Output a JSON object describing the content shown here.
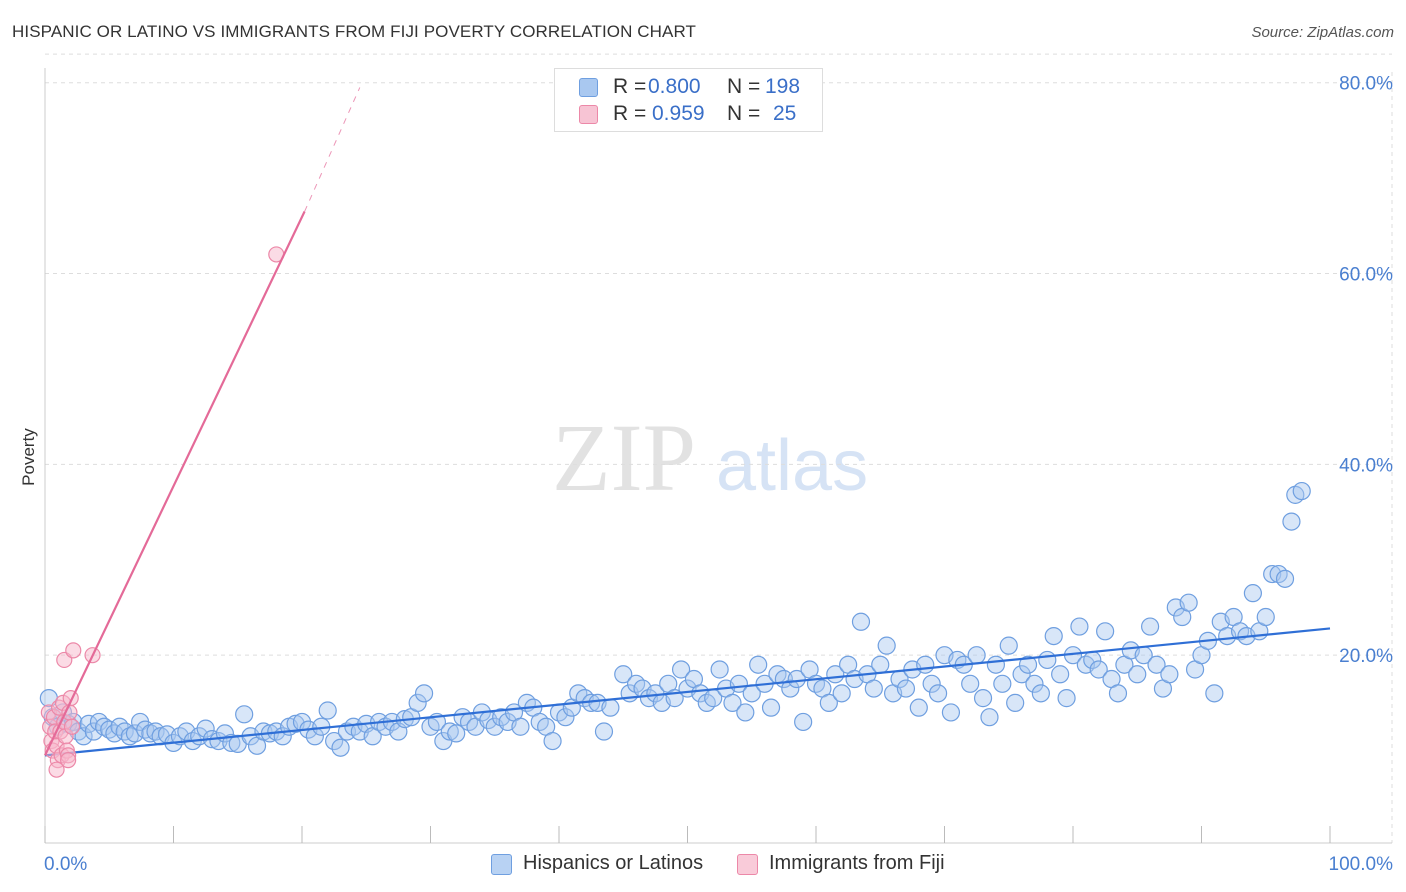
{
  "header": {
    "title": "HISPANIC OR LATINO VS IMMIGRANTS FROM FIJI POVERTY CORRELATION CHART",
    "source": "Source: ZipAtlas.com"
  },
  "watermark": {
    "zip": "ZIP",
    "atlas": "atlas"
  },
  "colors": {
    "blue_fill": "#a9c8f0",
    "blue_stroke": "#6f9fe0",
    "blue_line": "#2f6fd6",
    "pink_fill": "#f7b8cc",
    "pink_stroke": "#ec88a8",
    "pink_line": "#e46a98",
    "axis_label": "#4a7fd0",
    "grid": "#dddddd"
  },
  "stats_legend": {
    "rows": [
      {
        "r_label": "R =",
        "r_value": "0.800",
        "n_label": "N =",
        "n_value": "198"
      },
      {
        "r_label": "R =",
        "r_value": "0.959",
        "n_label": "N =",
        "n_value": "25"
      }
    ]
  },
  "bottom_legend": {
    "items": [
      {
        "label": "Hispanics or Latinos"
      },
      {
        "label": "Immigrants from Fiji"
      }
    ]
  },
  "chart_data": {
    "type": "scatter",
    "title": "HISPANIC OR LATINO VS IMMIGRANTS FROM FIJI POVERTY CORRELATION CHART",
    "xlabel": "",
    "ylabel": "Poverty",
    "xlim": [
      0,
      100
    ],
    "ylim": [
      0,
      83
    ],
    "x_tick_labels": [
      "0.0%",
      "100.0%"
    ],
    "y_ticks": [
      20,
      40,
      60,
      80
    ],
    "y_tick_labels": [
      "20.0%",
      "40.0%",
      "60.0%",
      "80.0%"
    ],
    "grid": true,
    "legend_position": "bottom-center",
    "series": [
      {
        "name": "Hispanics or Latinos",
        "r": 0.8,
        "n": 198,
        "trend": {
          "x0": 0,
          "y0": 9.5,
          "x1": 100,
          "y1": 22.8
        },
        "points": [
          [
            0.3,
            15.5
          ],
          [
            0.6,
            13.5
          ],
          [
            1.0,
            12.5
          ],
          [
            1.4,
            14.0
          ],
          [
            1.8,
            12.8
          ],
          [
            2.2,
            13.0
          ],
          [
            2.6,
            12.0
          ],
          [
            3.0,
            11.5
          ],
          [
            3.4,
            12.8
          ],
          [
            3.8,
            12.0
          ],
          [
            4.2,
            13.0
          ],
          [
            4.6,
            12.5
          ],
          [
            5.0,
            12.2
          ],
          [
            5.4,
            11.8
          ],
          [
            5.8,
            12.5
          ],
          [
            6.2,
            12.0
          ],
          [
            6.6,
            11.5
          ],
          [
            7.0,
            11.8
          ],
          [
            7.4,
            13.0
          ],
          [
            7.8,
            12.2
          ],
          [
            8.2,
            11.8
          ],
          [
            8.6,
            12.0
          ],
          [
            9.0,
            11.5
          ],
          [
            9.5,
            11.7
          ],
          [
            10.0,
            10.8
          ],
          [
            10.5,
            11.5
          ],
          [
            11.0,
            12.0
          ],
          [
            11.5,
            11.0
          ],
          [
            12.0,
            11.5
          ],
          [
            12.5,
            12.3
          ],
          [
            13.0,
            11.2
          ],
          [
            13.5,
            11.0
          ],
          [
            14.0,
            11.8
          ],
          [
            14.5,
            10.8
          ],
          [
            15.0,
            10.7
          ],
          [
            15.5,
            13.8
          ],
          [
            16.0,
            11.5
          ],
          [
            16.5,
            10.5
          ],
          [
            17.0,
            12.0
          ],
          [
            17.5,
            11.8
          ],
          [
            18.0,
            12.0
          ],
          [
            18.5,
            11.5
          ],
          [
            19.0,
            12.5
          ],
          [
            19.5,
            12.8
          ],
          [
            20.0,
            13.0
          ],
          [
            20.5,
            12.2
          ],
          [
            21.0,
            11.5
          ],
          [
            21.5,
            12.5
          ],
          [
            22.0,
            14.2
          ],
          [
            22.5,
            11.0
          ],
          [
            23.0,
            10.3
          ],
          [
            23.5,
            12.0
          ],
          [
            24.0,
            12.5
          ],
          [
            24.5,
            12.0
          ],
          [
            25.0,
            12.8
          ],
          [
            25.5,
            11.5
          ],
          [
            26.0,
            13.0
          ],
          [
            26.5,
            12.5
          ],
          [
            27.0,
            13.0
          ],
          [
            27.5,
            12.0
          ],
          [
            28.0,
            13.3
          ],
          [
            28.5,
            13.5
          ],
          [
            29.0,
            15.0
          ],
          [
            29.5,
            16.0
          ],
          [
            30.0,
            12.5
          ],
          [
            30.5,
            13.0
          ],
          [
            31.0,
            11.0
          ],
          [
            31.5,
            12.0
          ],
          [
            32.0,
            11.8
          ],
          [
            32.5,
            13.5
          ],
          [
            33.0,
            13.0
          ],
          [
            33.5,
            12.5
          ],
          [
            34.0,
            14.0
          ],
          [
            34.5,
            13.2
          ],
          [
            35.0,
            12.5
          ],
          [
            35.5,
            13.5
          ],
          [
            36.0,
            13.0
          ],
          [
            36.5,
            14.0
          ],
          [
            37.0,
            12.5
          ],
          [
            37.5,
            15.0
          ],
          [
            38.0,
            14.5
          ],
          [
            38.5,
            13.0
          ],
          [
            39.0,
            12.5
          ],
          [
            39.5,
            11.0
          ],
          [
            40.0,
            14.0
          ],
          [
            40.5,
            13.5
          ],
          [
            41.0,
            14.5
          ],
          [
            41.5,
            16.0
          ],
          [
            42.0,
            15.5
          ],
          [
            42.5,
            15.0
          ],
          [
            43.0,
            15.0
          ],
          [
            43.5,
            12.0
          ],
          [
            44.0,
            14.5
          ],
          [
            45.0,
            18.0
          ],
          [
            45.5,
            16.0
          ],
          [
            46.0,
            17.0
          ],
          [
            46.5,
            16.5
          ],
          [
            47.0,
            15.5
          ],
          [
            47.5,
            16.0
          ],
          [
            48.0,
            15.0
          ],
          [
            48.5,
            17.0
          ],
          [
            49.0,
            15.5
          ],
          [
            49.5,
            18.5
          ],
          [
            50.0,
            16.5
          ],
          [
            50.5,
            17.5
          ],
          [
            51.0,
            16.0
          ],
          [
            51.5,
            15.0
          ],
          [
            52.0,
            15.5
          ],
          [
            52.5,
            18.5
          ],
          [
            53.0,
            16.5
          ],
          [
            53.5,
            15.0
          ],
          [
            54.0,
            17.0
          ],
          [
            54.5,
            14.0
          ],
          [
            55.0,
            16.0
          ],
          [
            55.5,
            19.0
          ],
          [
            56.0,
            17.0
          ],
          [
            56.5,
            14.5
          ],
          [
            57.0,
            18.0
          ],
          [
            57.5,
            17.5
          ],
          [
            58.0,
            16.5
          ],
          [
            58.5,
            17.5
          ],
          [
            59.0,
            13.0
          ],
          [
            59.5,
            18.5
          ],
          [
            60.0,
            17.0
          ],
          [
            60.5,
            16.5
          ],
          [
            61.0,
            15.0
          ],
          [
            61.5,
            18.0
          ],
          [
            62.0,
            16.0
          ],
          [
            62.5,
            19.0
          ],
          [
            63.0,
            17.5
          ],
          [
            63.5,
            23.5
          ],
          [
            64.0,
            18.0
          ],
          [
            64.5,
            16.5
          ],
          [
            65.0,
            19.0
          ],
          [
            65.5,
            21.0
          ],
          [
            66.0,
            16.0
          ],
          [
            66.5,
            17.5
          ],
          [
            67.0,
            16.5
          ],
          [
            67.5,
            18.5
          ],
          [
            68.0,
            14.5
          ],
          [
            68.5,
            19.0
          ],
          [
            69.0,
            17.0
          ],
          [
            69.5,
            16.0
          ],
          [
            70.0,
            20.0
          ],
          [
            70.5,
            14.0
          ],
          [
            71.0,
            19.5
          ],
          [
            71.5,
            19.0
          ],
          [
            72.0,
            17.0
          ],
          [
            72.5,
            20.0
          ],
          [
            73.0,
            15.5
          ],
          [
            73.5,
            13.5
          ],
          [
            74.0,
            19.0
          ],
          [
            74.5,
            17.0
          ],
          [
            75.0,
            21.0
          ],
          [
            75.5,
            15.0
          ],
          [
            76.0,
            18.0
          ],
          [
            76.5,
            19.0
          ],
          [
            77.0,
            17.0
          ],
          [
            77.5,
            16.0
          ],
          [
            78.0,
            19.5
          ],
          [
            78.5,
            22.0
          ],
          [
            79.0,
            18.0
          ],
          [
            79.5,
            15.5
          ],
          [
            80.0,
            20.0
          ],
          [
            80.5,
            23.0
          ],
          [
            81.0,
            19.0
          ],
          [
            81.5,
            19.5
          ],
          [
            82.0,
            18.5
          ],
          [
            82.5,
            22.5
          ],
          [
            83.0,
            17.5
          ],
          [
            83.5,
            16.0
          ],
          [
            84.0,
            19.0
          ],
          [
            84.5,
            20.5
          ],
          [
            85.0,
            18.0
          ],
          [
            85.5,
            20.0
          ],
          [
            86.0,
            23.0
          ],
          [
            86.5,
            19.0
          ],
          [
            87.0,
            16.5
          ],
          [
            87.5,
            18.0
          ],
          [
            88.0,
            25.0
          ],
          [
            88.5,
            24.0
          ],
          [
            89.0,
            25.5
          ],
          [
            89.5,
            18.5
          ],
          [
            90.0,
            20.0
          ],
          [
            90.5,
            21.5
          ],
          [
            91.0,
            16.0
          ],
          [
            91.5,
            23.5
          ],
          [
            92.0,
            22.0
          ],
          [
            92.5,
            24.0
          ],
          [
            93.0,
            22.5
          ],
          [
            93.5,
            22.0
          ],
          [
            94.0,
            26.5
          ],
          [
            94.5,
            22.5
          ],
          [
            95.0,
            24.0
          ],
          [
            95.5,
            28.5
          ],
          [
            96.0,
            28.5
          ],
          [
            96.5,
            28.0
          ],
          [
            97.0,
            34.0
          ],
          [
            97.3,
            36.8
          ],
          [
            97.8,
            37.2
          ]
        ]
      },
      {
        "name": "Immigrants from Fiji",
        "r": 0.959,
        "n": 25,
        "trend": {
          "x0": 0,
          "y0": 9.5,
          "x1": 20.2,
          "y1": 66.5,
          "dash_to_x": 24.5,
          "dash_to_y": 79.5
        },
        "points": [
          [
            0.3,
            14.0
          ],
          [
            0.4,
            12.5
          ],
          [
            0.5,
            11.0
          ],
          [
            0.6,
            10.0
          ],
          [
            0.7,
            13.5
          ],
          [
            0.8,
            12.0
          ],
          [
            0.9,
            10.5
          ],
          [
            1.0,
            9.0
          ],
          [
            1.1,
            14.5
          ],
          [
            1.2,
            12.0
          ],
          [
            1.3,
            9.5
          ],
          [
            1.4,
            15.0
          ],
          [
            1.5,
            13.0
          ],
          [
            1.6,
            11.5
          ],
          [
            1.7,
            10.0
          ],
          [
            1.8,
            9.5
          ],
          [
            1.9,
            14.0
          ],
          [
            2.0,
            15.5
          ],
          [
            2.1,
            12.5
          ],
          [
            0.9,
            8.0
          ],
          [
            1.5,
            19.5
          ],
          [
            1.8,
            9.0
          ],
          [
            2.2,
            20.5
          ],
          [
            3.7,
            20.0
          ],
          [
            18.0,
            62.0
          ]
        ]
      }
    ]
  }
}
